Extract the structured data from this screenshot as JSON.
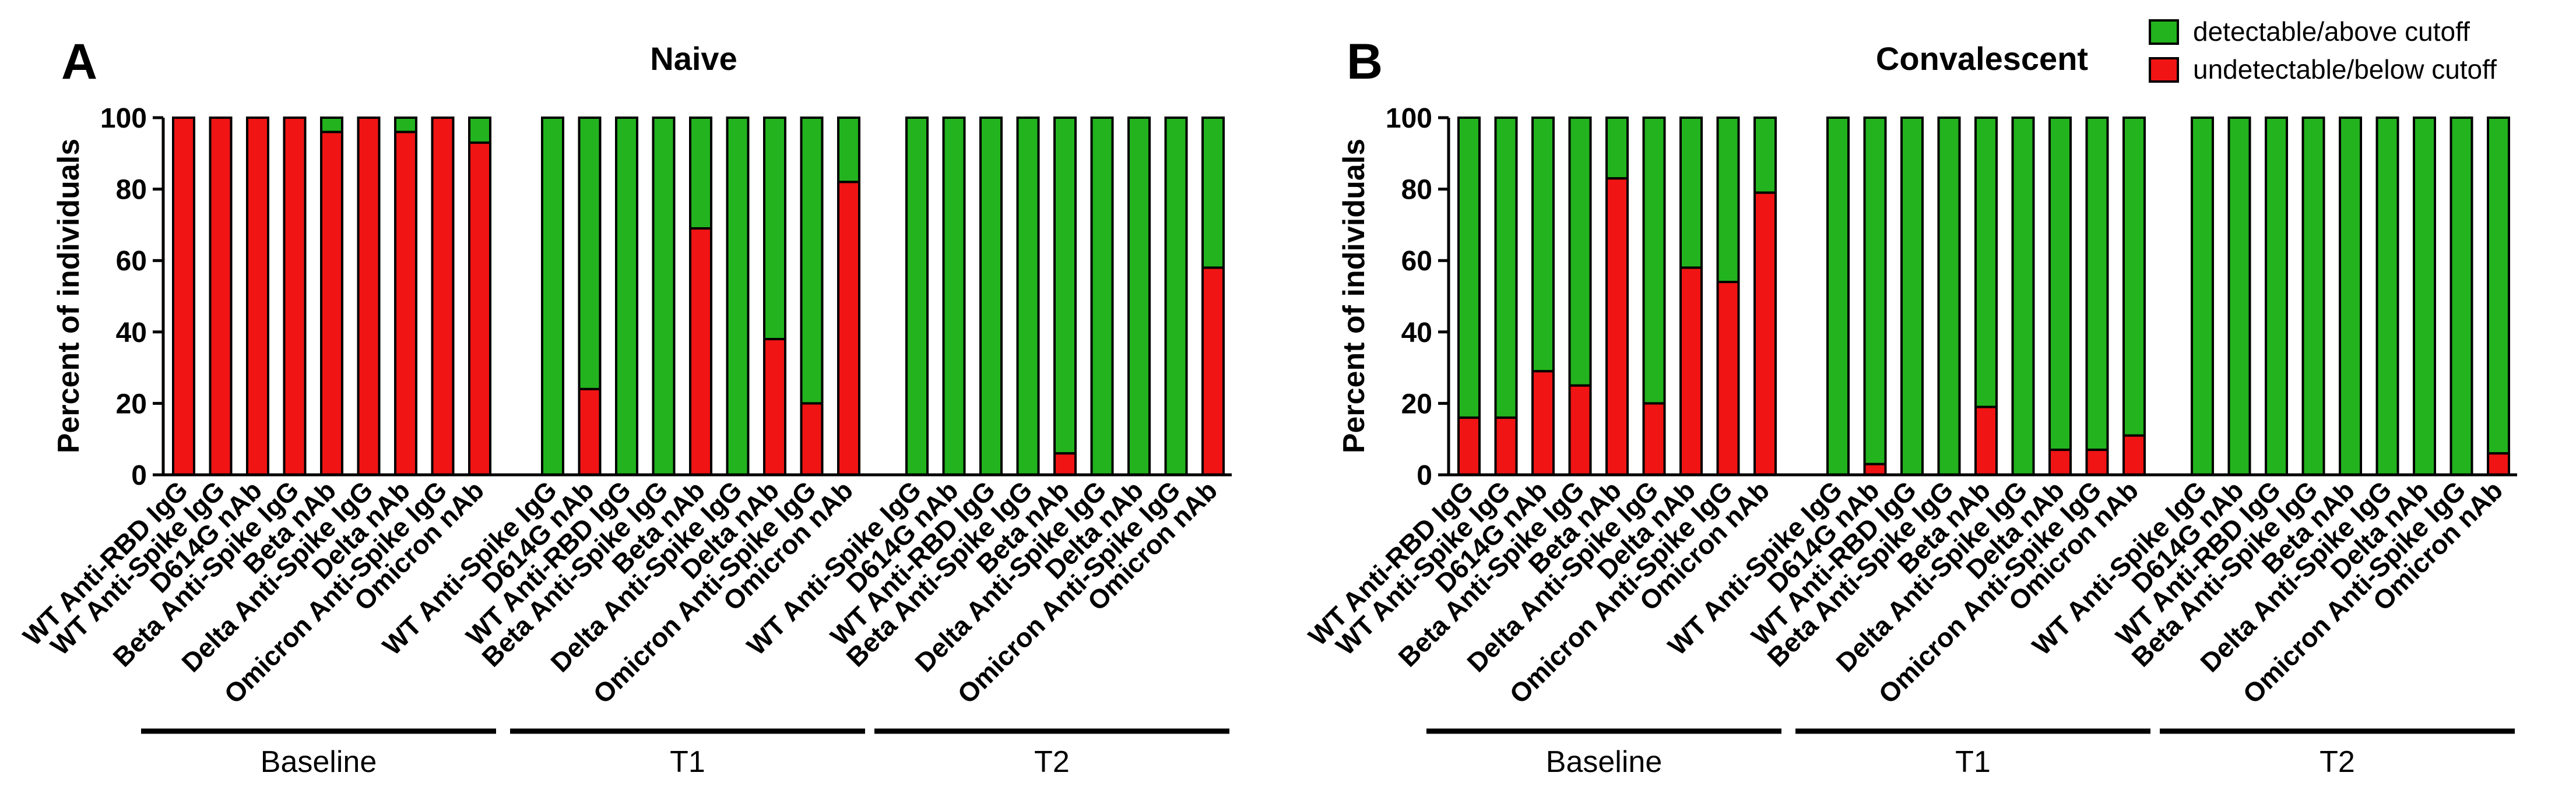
{
  "colors": {
    "detectable": "#22B31E",
    "undetectable": "#F01414",
    "axis": "#000000"
  },
  "legend": {
    "detectable_label": "detectable/above cutoff",
    "undetectable_label": "undetectable/below cutoff"
  },
  "chart_data": [
    {
      "type": "bar",
      "stacked": true,
      "panel": "A",
      "title": "Naive",
      "ylabel": "Percent of individuals",
      "ylim": [
        0,
        100
      ],
      "yticks": [
        0,
        20,
        40,
        60,
        80,
        100
      ],
      "groups": [
        {
          "name": "Baseline",
          "categories": [
            "WT Anti-RBD IgG",
            "WT Anti-Spike IgG",
            "D614G nAb",
            "Beta Anti-Spike IgG",
            "Beta nAb",
            "Delta Anti-Spike IgG",
            "Delta nAb",
            "Omicron Anti-Spike IgG",
            "Omicron nAb"
          ],
          "undetectable": [
            100,
            100,
            100,
            100,
            96,
            100,
            96,
            100,
            93
          ]
        },
        {
          "name": "T1",
          "categories": [
            "WT Anti-Spike IgG",
            "D614G nAb",
            "WT Anti-RBD IgG",
            "Beta Anti-Spike IgG",
            "Beta nAb",
            "Delta Anti-Spike IgG",
            "Delta nAb",
            "Omicron Anti-Spike IgG",
            "Omicron nAb"
          ],
          "undetectable": [
            0,
            24,
            0,
            0,
            69,
            0,
            38,
            20,
            82
          ]
        },
        {
          "name": "T2",
          "categories": [
            "WT Anti-Spike IgG",
            "D614G nAb",
            "WT Anti-RBD IgG",
            "Beta Anti-Spike IgG",
            "Beta nAb",
            "Delta Anti-Spike IgG",
            "Delta nAb",
            "Omicron Anti-Spike IgG",
            "Omicron nAb"
          ],
          "undetectable": [
            0,
            0,
            0,
            0,
            6,
            0,
            0,
            0,
            58
          ]
        }
      ]
    },
    {
      "type": "bar",
      "stacked": true,
      "panel": "B",
      "title": "Convalescent",
      "ylabel": "Percent of individuals",
      "ylim": [
        0,
        100
      ],
      "yticks": [
        0,
        20,
        40,
        60,
        80,
        100
      ],
      "groups": [
        {
          "name": "Baseline",
          "categories": [
            "WT Anti-RBD IgG",
            "WT Anti-Spike IgG",
            "D614G nAb",
            "Beta Anti-Spike IgG",
            "Beta nAb",
            "Delta Anti-Spike IgG",
            "Delta nAb",
            "Omicron Anti-Spike IgG",
            "Omicron nAb"
          ],
          "undetectable": [
            16,
            16,
            29,
            25,
            83,
            20,
            58,
            54,
            79
          ]
        },
        {
          "name": "T1",
          "categories": [
            "WT Anti-Spike IgG",
            "D614G nAb",
            "WT Anti-RBD IgG",
            "Beta Anti-Spike IgG",
            "Beta nAb",
            "Delta Anti-Spike IgG",
            "Delta nAb",
            "Omicron Anti-Spike IgG",
            "Omicron nAb"
          ],
          "undetectable": [
            0,
            3,
            0,
            0,
            19,
            0,
            7,
            7,
            11
          ]
        },
        {
          "name": "T2",
          "categories": [
            "WT Anti-Spike IgG",
            "D614G nAb",
            "WT Anti-RBD IgG",
            "Beta Anti-Spike IgG",
            "Beta nAb",
            "Delta Anti-Spike IgG",
            "Delta nAb",
            "Omicron Anti-Spike IgG",
            "Omicron nAb"
          ],
          "undetectable": [
            0,
            0,
            0,
            0,
            0,
            0,
            0,
            0,
            6
          ]
        }
      ]
    }
  ]
}
